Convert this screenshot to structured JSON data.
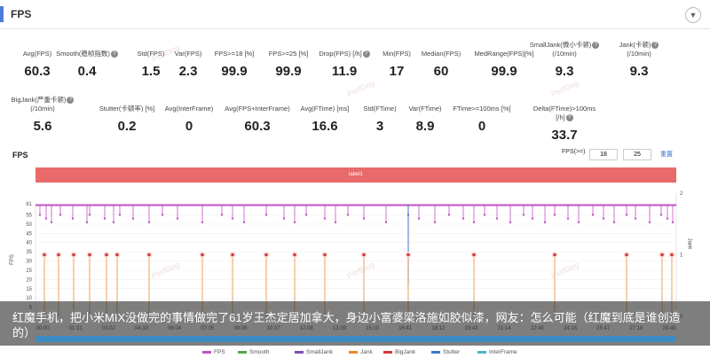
{
  "header": {
    "title": "FPS",
    "collapse_icon": "chevron-down-icon"
  },
  "metrics_row1": [
    {
      "label": "Avg(FPS)",
      "value": "60.3",
      "help": false
    },
    {
      "label": "Smooth(稳帧指数)",
      "value": "0.4",
      "help": true
    },
    {
      "label": "Std(FPS)",
      "value": "1.5",
      "help": false
    },
    {
      "label": "Var(FPS)",
      "value": "2.3",
      "help": false
    },
    {
      "label": "FPS>=18 [%]",
      "value": "99.9",
      "help": false
    },
    {
      "label": "FPS>=25 [%]",
      "value": "99.9",
      "help": false
    },
    {
      "label": "Drop(FPS) [/h]",
      "value": "11.9",
      "help": true
    },
    {
      "label": "Min(FPS)",
      "value": "17",
      "help": false
    },
    {
      "label": "Median(FPS)",
      "value": "60",
      "help": false
    },
    {
      "label": "MedRange(FPS)[%]",
      "value": "99.9",
      "help": false
    },
    {
      "label": "SmallJank(微小卡顿)",
      "label2": "(/10min)",
      "value": "9.3",
      "help": true
    },
    {
      "label": "Jank(卡顿)",
      "label2": "(/10min)",
      "value": "9.3",
      "help": true
    }
  ],
  "metrics_row2": [
    {
      "label": "BigJank(严重卡顿)",
      "label2": "(/10min)",
      "value": "5.6",
      "help": true
    },
    {
      "label": "Stutter(卡顿率) [%]",
      "value": "0.2",
      "help": false
    },
    {
      "label": "Avg(InterFrame)",
      "value": "0",
      "help": false
    },
    {
      "label": "Avg(FPS+InterFrame)",
      "value": "60.3",
      "help": false
    },
    {
      "label": "Avg(FTime) [ms]",
      "value": "16.6",
      "help": false
    },
    {
      "label": "Std(FTime)",
      "value": "3",
      "help": false
    },
    {
      "label": "Var(FTime)",
      "value": "8.9",
      "help": false
    },
    {
      "label": "FTime>=100ms [%]",
      "value": "0",
      "help": false
    },
    {
      "label": "Delta(FTime)>100ms [/h]",
      "value": "33.7",
      "help": true
    }
  ],
  "chart_header": {
    "title": "FPS",
    "fps_ctrl_label": "FPS(>=)",
    "fps_min": "18",
    "fps_max": "25",
    "reset_label": "重置"
  },
  "label_bar": "label1",
  "axis": {
    "left_title": "FPS",
    "right_title": "Jank",
    "left_ticks": [
      "61",
      "55",
      "50",
      "45",
      "40",
      "35",
      "30",
      "25",
      "20",
      "15",
      "10",
      "5",
      "0"
    ],
    "right_ticks": [
      "2",
      "1",
      "0"
    ]
  },
  "chart_data": {
    "type": "line",
    "x": [
      "00:00",
      "01:31",
      "03:02",
      "04:33",
      "06:04",
      "07:35",
      "09:06",
      "10:37",
      "12:08",
      "13:39",
      "15:10",
      "16:41",
      "18:12",
      "19:43",
      "21:14",
      "22:45",
      "24:16",
      "25:47",
      "27:18",
      "28:49"
    ],
    "series": [
      {
        "name": "FPS",
        "color": "#c153c4"
      },
      {
        "name": "Smooth",
        "color": "#55a84a"
      },
      {
        "name": "SmallJank",
        "color": "#7b4fb6"
      },
      {
        "name": "Jank",
        "color": "#e68a2e"
      },
      {
        "name": "BigJank",
        "color": "#d43a3a"
      },
      {
        "name": "Stutter",
        "color": "#3a78c8"
      },
      {
        "name": "InterFrame",
        "color": "#4fb3c8"
      }
    ],
    "ylim": [
      0,
      61
    ],
    "y2lim": [
      0,
      2
    ]
  },
  "overlay_text": "红魔手机，把小米MIX没做完的事情做完了61岁王杰定居加拿大，身边小富婆梁洛施如胶似漆，网友：怎么可能（红魔到底是谁创造的）",
  "watermark": "PerfDog"
}
